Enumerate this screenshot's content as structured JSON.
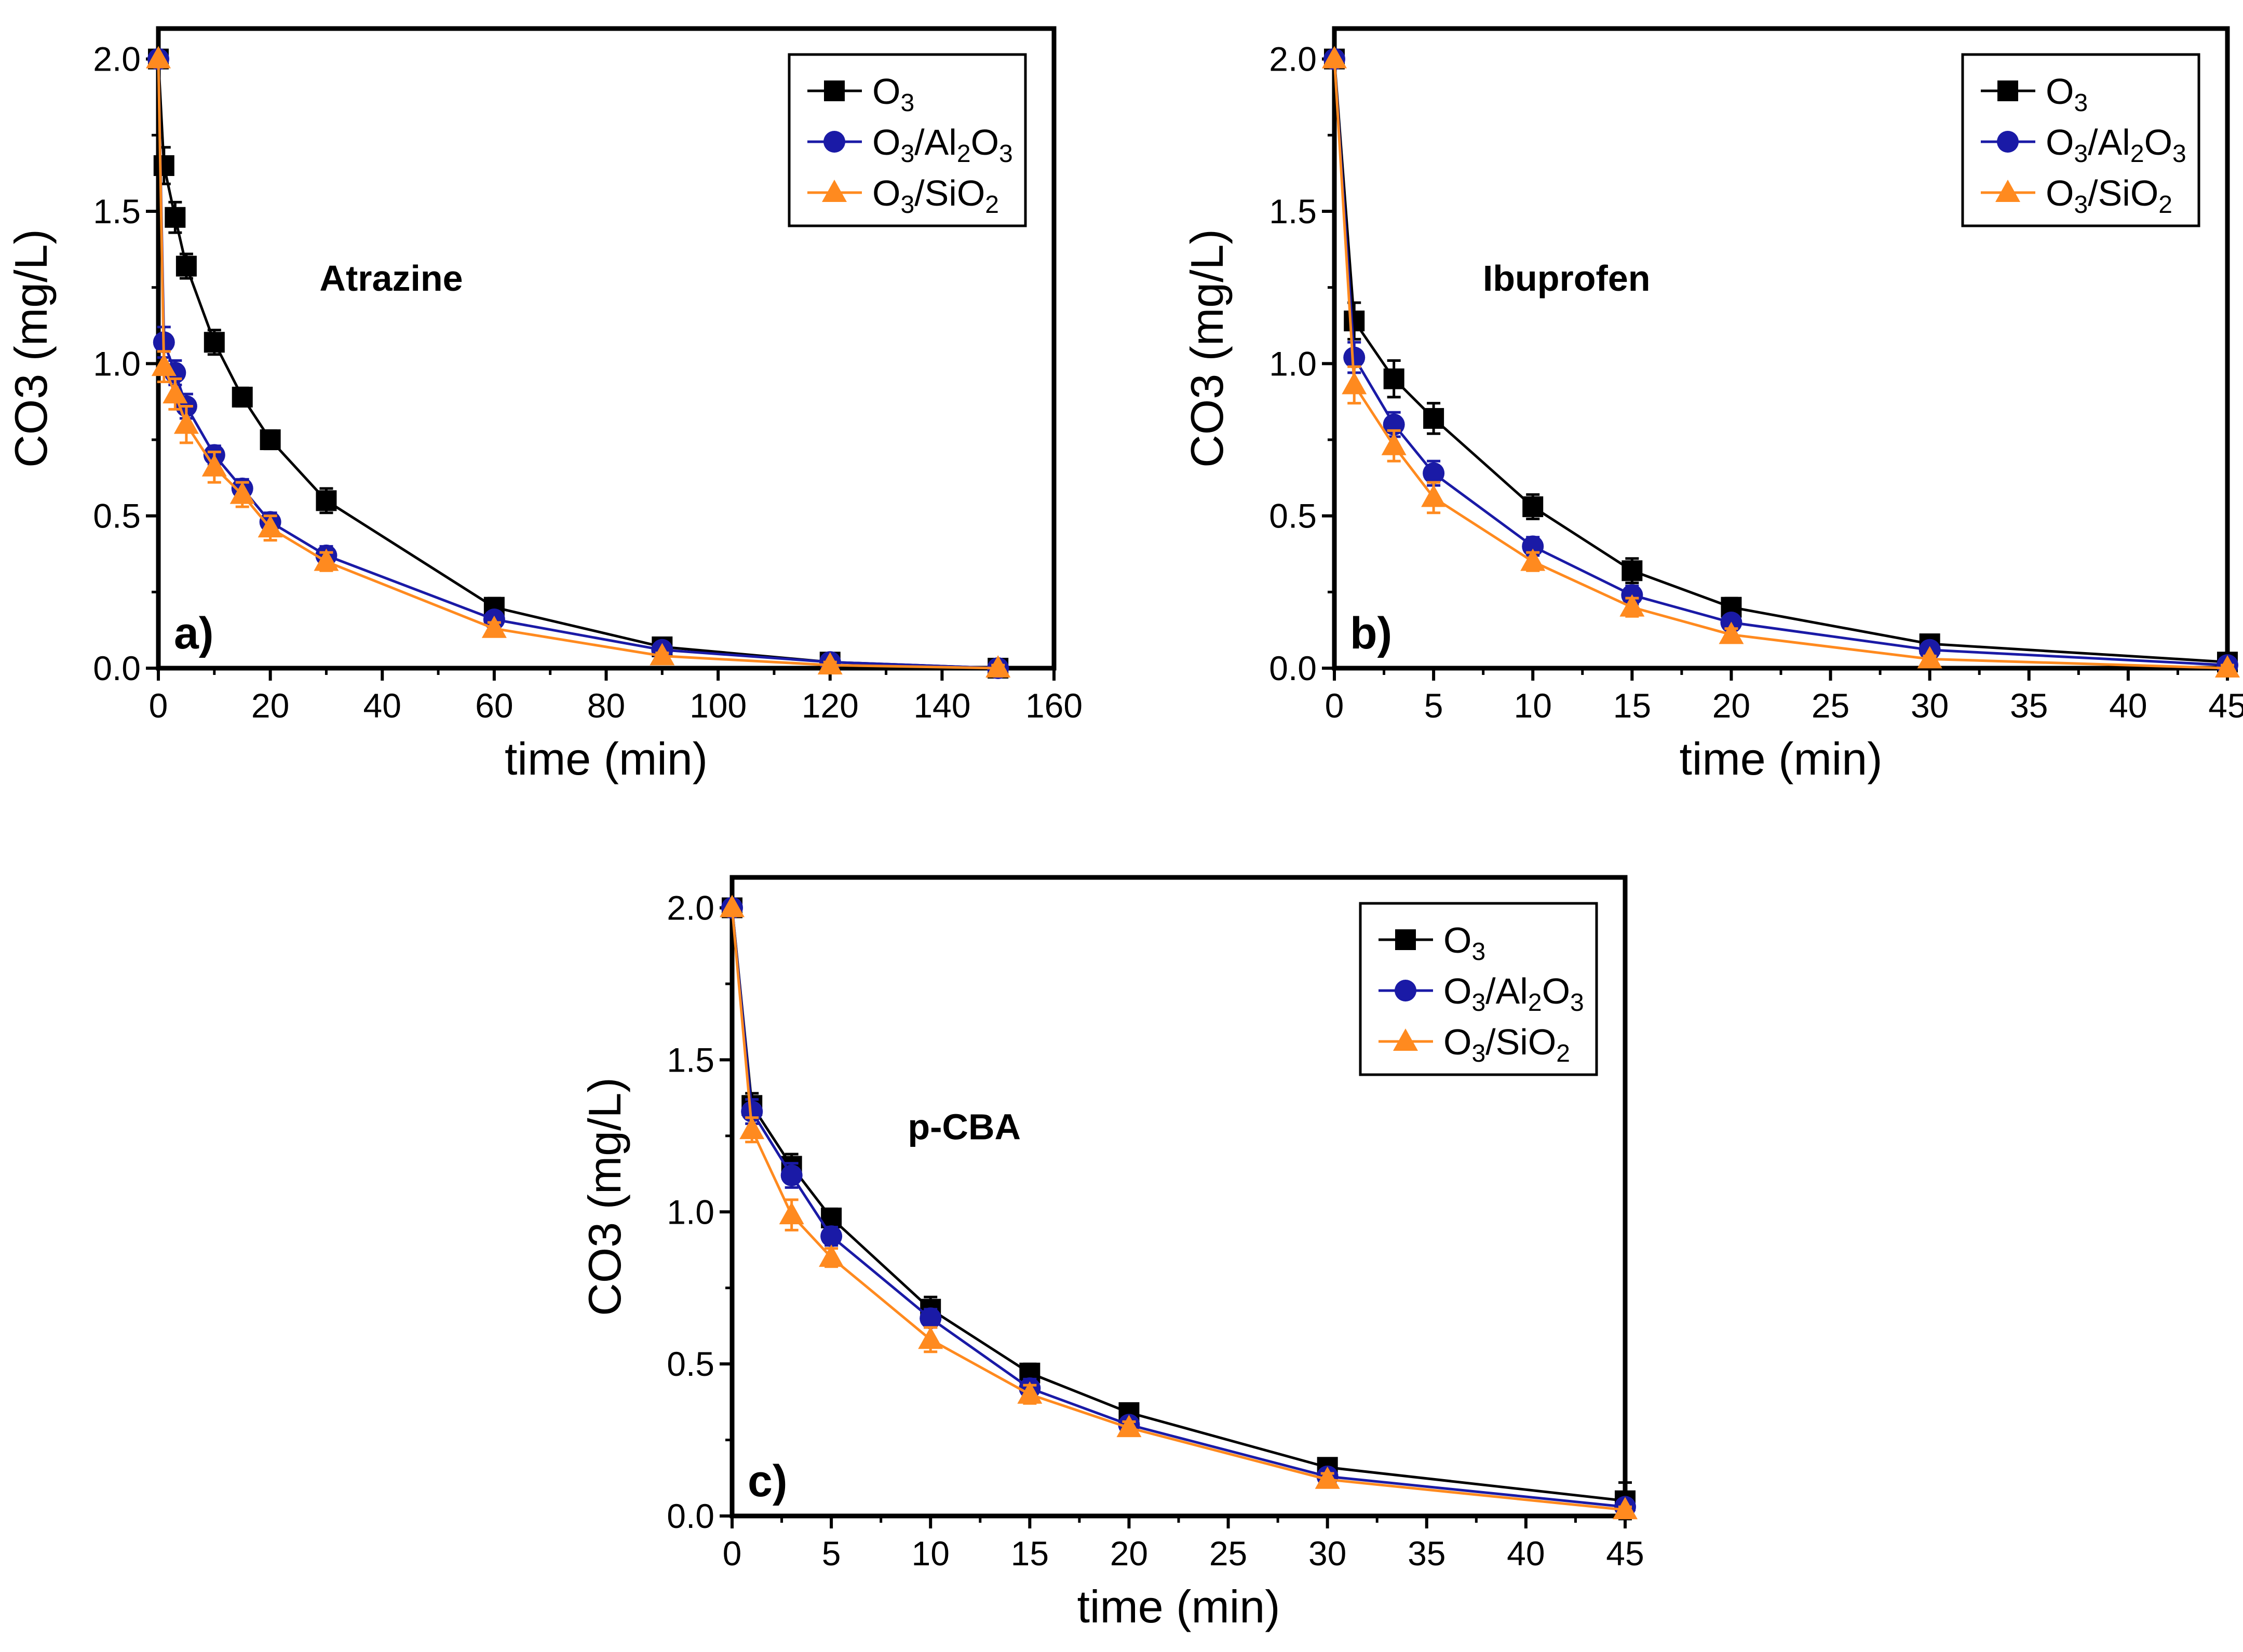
{
  "colors": {
    "o3": "#000000",
    "o3_al2o3": "#1a1aa6",
    "o3_sio2": "#ff8a1f",
    "axis": "#000000"
  },
  "legend_labels": [
    {
      "base": "O",
      "parts": [
        [
          "3",
          "sub"
        ]
      ]
    },
    {
      "base": "O",
      "parts": [
        [
          "3",
          "sub"
        ],
        [
          "/Al",
          "norm"
        ],
        [
          "2",
          "sub"
        ],
        [
          "O",
          "norm"
        ],
        [
          "3",
          "sub"
        ]
      ]
    },
    {
      "base": "O",
      "parts": [
        [
          "3",
          "sub"
        ],
        [
          "/SiO",
          "norm"
        ],
        [
          "2",
          "sub"
        ]
      ]
    }
  ],
  "chart_data": [
    {
      "type": "line",
      "panel_label": "a)",
      "annotation": "Atrazine",
      "xlabel": "time (min)",
      "ylabel": "CO3 (mg/L)",
      "xlim": [
        0,
        160
      ],
      "ylim": [
        0,
        2.1
      ],
      "xticks": [
        0,
        20,
        40,
        60,
        80,
        100,
        120,
        140,
        160
      ],
      "yticks": [
        0.0,
        0.5,
        1.0,
        1.5,
        2.0
      ],
      "xtick_labels": [
        "0",
        "20",
        "40",
        "60",
        "80",
        "100",
        "120",
        "140",
        "160"
      ],
      "ytick_labels": [
        "0.0",
        "0.5",
        "1.0",
        "1.5",
        "2.0"
      ],
      "legend_position": "top-right",
      "series": [
        {
          "key": "o3",
          "marker": "square",
          "x": [
            0,
            1,
            3,
            5,
            10,
            15,
            20,
            30,
            60,
            90,
            120,
            150
          ],
          "y": [
            2.0,
            1.65,
            1.48,
            1.32,
            1.07,
            0.89,
            0.75,
            0.55,
            0.2,
            0.07,
            0.02,
            0.0
          ],
          "err": [
            0,
            0.06,
            0.05,
            0.04,
            0.04,
            0.03,
            0.03,
            0.04,
            0.03,
            0.02,
            0.01,
            0.01
          ]
        },
        {
          "key": "o3_al2o3",
          "marker": "circle",
          "x": [
            0,
            1,
            3,
            5,
            10,
            15,
            20,
            30,
            60,
            90,
            120,
            150
          ],
          "y": [
            2.0,
            1.07,
            0.97,
            0.86,
            0.7,
            0.59,
            0.48,
            0.37,
            0.16,
            0.06,
            0.02,
            0.0
          ],
          "err": [
            0,
            0.05,
            0.04,
            0.04,
            0.03,
            0.03,
            0.03,
            0.03,
            0.02,
            0.02,
            0.01,
            0.01
          ]
        },
        {
          "key": "o3_sio2",
          "marker": "triangle",
          "x": [
            0,
            1,
            3,
            5,
            10,
            15,
            20,
            30,
            60,
            90,
            120,
            150
          ],
          "y": [
            2.0,
            0.99,
            0.9,
            0.8,
            0.66,
            0.57,
            0.46,
            0.35,
            0.13,
            0.04,
            0.01,
            0.0
          ],
          "err": [
            0,
            0.05,
            0.05,
            0.06,
            0.05,
            0.04,
            0.04,
            0.03,
            0.02,
            0.01,
            0.01,
            0.01
          ]
        }
      ]
    },
    {
      "type": "line",
      "panel_label": "b)",
      "annotation": "Ibuprofen",
      "xlabel": "time (min)",
      "ylabel": "CO3 (mg/L)",
      "xlim": [
        0,
        45
      ],
      "ylim": [
        0,
        2.1
      ],
      "xticks": [
        0,
        5,
        10,
        15,
        20,
        25,
        30,
        35,
        40,
        45
      ],
      "yticks": [
        0.0,
        0.5,
        1.0,
        1.5,
        2.0
      ],
      "xtick_labels": [
        "0",
        "5",
        "10",
        "15",
        "20",
        "25",
        "30",
        "35",
        "40",
        "45"
      ],
      "ytick_labels": [
        "0.0",
        "0.5",
        "1.0",
        "1.5",
        "2.0"
      ],
      "legend_position": "top-right",
      "series": [
        {
          "key": "o3",
          "marker": "square",
          "x": [
            0,
            1,
            3,
            5,
            10,
            15,
            20,
            30,
            45
          ],
          "y": [
            2.0,
            1.14,
            0.95,
            0.82,
            0.53,
            0.32,
            0.2,
            0.08,
            0.02
          ],
          "err": [
            0,
            0.06,
            0.06,
            0.05,
            0.04,
            0.04,
            0.03,
            0.02,
            0.01
          ]
        },
        {
          "key": "o3_al2o3",
          "marker": "circle",
          "x": [
            0,
            1,
            3,
            5,
            10,
            15,
            20,
            30,
            45
          ],
          "y": [
            2.0,
            1.02,
            0.8,
            0.64,
            0.4,
            0.24,
            0.15,
            0.06,
            0.01
          ],
          "err": [
            0,
            0.05,
            0.04,
            0.04,
            0.03,
            0.03,
            0.02,
            0.02,
            0.01
          ]
        },
        {
          "key": "o3_sio2",
          "marker": "triangle",
          "x": [
            0,
            1,
            3,
            5,
            10,
            15,
            20,
            30,
            45
          ],
          "y": [
            2.0,
            0.93,
            0.73,
            0.56,
            0.35,
            0.2,
            0.11,
            0.03,
            0.0
          ],
          "err": [
            0,
            0.06,
            0.05,
            0.05,
            0.03,
            0.03,
            0.02,
            0.01,
            0.01
          ]
        }
      ]
    },
    {
      "type": "line",
      "panel_label": "c)",
      "annotation": "p-CBA",
      "xlabel": "time (min)",
      "ylabel": "CO3 (mg/L)",
      "xlim": [
        0,
        45
      ],
      "ylim": [
        0,
        2.1
      ],
      "xticks": [
        0,
        5,
        10,
        15,
        20,
        25,
        30,
        35,
        40,
        45
      ],
      "yticks": [
        0.0,
        0.5,
        1.0,
        1.5,
        2.0
      ],
      "xtick_labels": [
        "0",
        "5",
        "10",
        "15",
        "20",
        "25",
        "30",
        "35",
        "40",
        "45"
      ],
      "ytick_labels": [
        "0.0",
        "0.5",
        "1.0",
        "1.5",
        "2.0"
      ],
      "legend_position": "top-right",
      "series": [
        {
          "key": "o3",
          "marker": "square",
          "x": [
            0,
            1,
            3,
            5,
            10,
            15,
            20,
            30,
            45
          ],
          "y": [
            2.0,
            1.35,
            1.15,
            0.98,
            0.68,
            0.47,
            0.34,
            0.16,
            0.05
          ],
          "err": [
            0,
            0.04,
            0.04,
            0.03,
            0.04,
            0.03,
            0.02,
            0.02,
            0.06
          ]
        },
        {
          "key": "o3_al2o3",
          "marker": "circle",
          "x": [
            0,
            1,
            3,
            5,
            10,
            15,
            20,
            30,
            45
          ],
          "y": [
            2.0,
            1.33,
            1.12,
            0.92,
            0.65,
            0.42,
            0.3,
            0.13,
            0.03
          ],
          "err": [
            0,
            0.04,
            0.04,
            0.03,
            0.03,
            0.03,
            0.02,
            0.02,
            0.02
          ]
        },
        {
          "key": "o3_sio2",
          "marker": "triangle",
          "x": [
            0,
            1,
            3,
            5,
            10,
            15,
            20,
            30,
            45
          ],
          "y": [
            2.0,
            1.27,
            0.99,
            0.85,
            0.58,
            0.4,
            0.29,
            0.12,
            0.02
          ],
          "err": [
            0,
            0.04,
            0.05,
            0.03,
            0.04,
            0.03,
            0.02,
            0.02,
            0.01
          ]
        }
      ]
    }
  ]
}
